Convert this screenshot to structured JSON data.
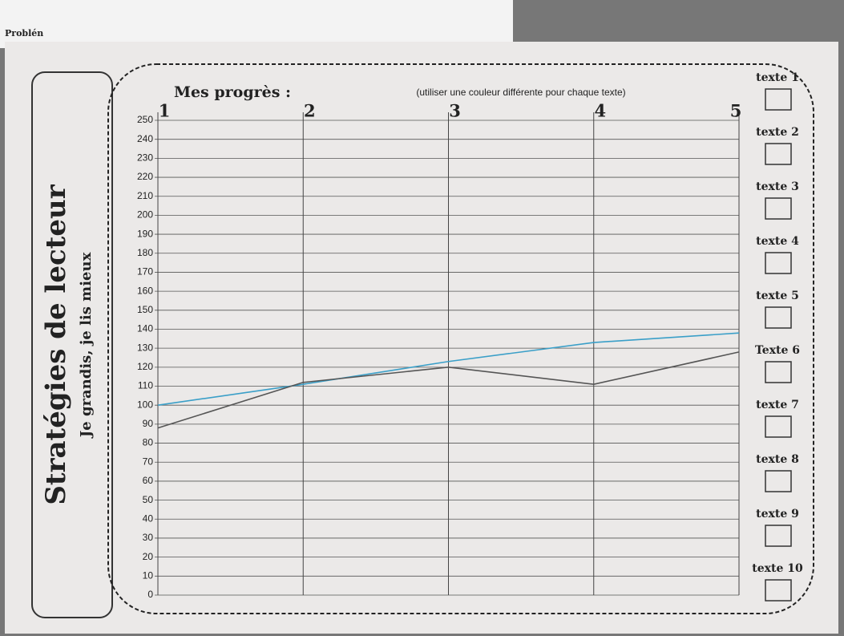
{
  "corner_text": "Problén",
  "sidebar": {
    "title": "Stratégies de lecteur",
    "subtitle": "Je grandis, je lis mieux"
  },
  "header": {
    "title": "Mes progrès :",
    "note": "(utiliser une couleur différente pour chaque texte)"
  },
  "text_slots": [
    "texte 1",
    "texte 2",
    "texte 3",
    "texte 4",
    "texte 5",
    "Texte 6",
    "texte 7",
    "texte 8",
    "texte 9",
    "texte 10"
  ],
  "chart_data": {
    "type": "line",
    "categories": [
      "1",
      "2",
      "3",
      "4",
      "5"
    ],
    "series": [
      {
        "color": "#3a9fc8",
        "values": [
          100,
          111,
          123,
          133,
          138
        ]
      },
      {
        "color": "#555555",
        "values": [
          88,
          112,
          120,
          111,
          128
        ]
      }
    ],
    "ylim": [
      0,
      250
    ],
    "yticks": [
      0,
      10,
      20,
      30,
      40,
      50,
      60,
      70,
      80,
      90,
      100,
      110,
      120,
      130,
      140,
      150,
      160,
      170,
      180,
      190,
      200,
      210,
      220,
      230,
      240,
      250
    ],
    "grid": true
  }
}
